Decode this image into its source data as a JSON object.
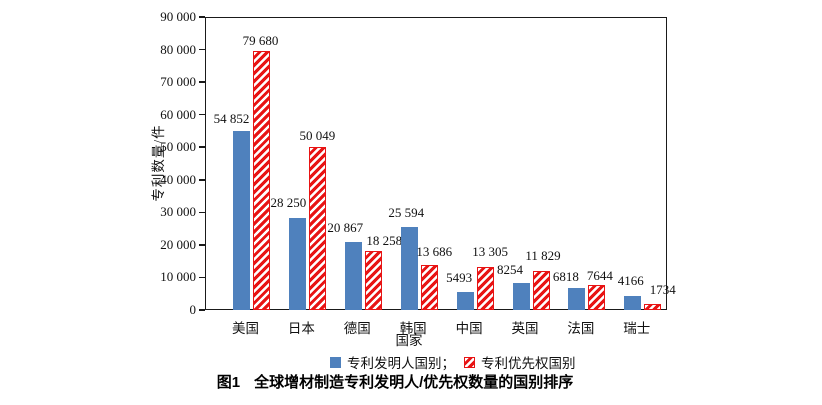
{
  "figure": {
    "caption_label": "图1",
    "caption_text": "全球增材制造专利发明人/优先权数量的国别排序"
  },
  "chart_data": {
    "type": "bar",
    "title": "图1 全球增材制造专利发明人/优先权数量的国别排序",
    "xlabel": "国家",
    "ylabel": "专利数量/件",
    "ylim": [
      0,
      90000
    ],
    "ytick_step": 10000,
    "ytick_labels": [
      "0",
      "10 000",
      "20 000",
      "30 000",
      "40 000",
      "50 000",
      "60 000",
      "70 000",
      "80 000",
      "90 000"
    ],
    "grid": false,
    "legend_position": "bottom-center",
    "legend_separator": "；",
    "categories": [
      "美国",
      "日本",
      "德国",
      "韩国",
      "中国",
      "英国",
      "法国",
      "瑞士"
    ],
    "series": [
      {
        "name": "专利发明人国别",
        "style": "solid",
        "color": "#4F81BD",
        "values": [
          54852,
          28250,
          20867,
          25594,
          5493,
          8254,
          6818,
          4166
        ],
        "value_labels": [
          "54 852",
          "28 250",
          "20 867",
          "25 594",
          "5493",
          "8254",
          "6818",
          "4166"
        ]
      },
      {
        "name": "专利优先权国别",
        "style": "hatched",
        "color": "#E81414",
        "values": [
          79680,
          50049,
          18258,
          13686,
          13305,
          11829,
          7644,
          1734
        ],
        "value_labels": [
          "79 680",
          "50 049",
          "18 258",
          "13 686",
          "13 305",
          "11 829",
          "7644",
          "1734"
        ]
      }
    ],
    "label_offsets": [
      [
        [
          -10,
          6
        ],
        [
          -9,
          9
        ],
        [
          -8,
          8
        ],
        [
          -3,
          8
        ],
        [
          -6,
          8
        ],
        [
          -11,
          7
        ],
        [
          -11,
          5
        ],
        [
          -2,
          9
        ]
      ],
      [
        [
          -1,
          4
        ],
        [
          0,
          5
        ],
        [
          11,
          4
        ],
        [
          5,
          7
        ],
        [
          5,
          9
        ],
        [
          2,
          9
        ],
        [
          3,
          3
        ],
        [
          10,
          8
        ]
      ]
    ]
  }
}
